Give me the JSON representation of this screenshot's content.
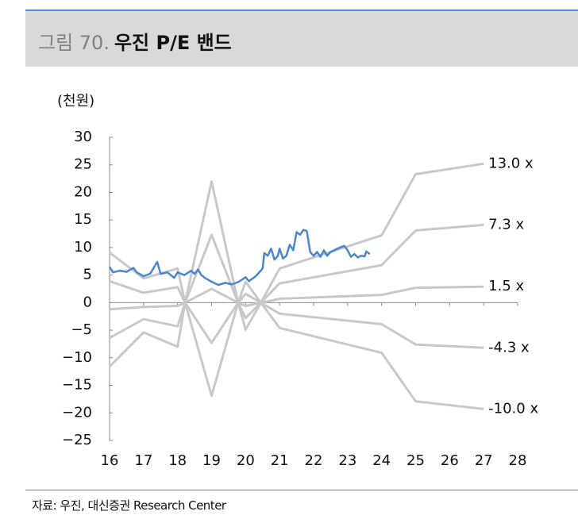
{
  "header": {
    "label": "그림 70.",
    "title": "우진 P/E 밴드"
  },
  "source": "자료: 우진, 대신증권 Research Center",
  "chart_data": {
    "type": "line",
    "y_label": "(천원)",
    "xlim": [
      16,
      28
    ],
    "xticks": [
      16,
      17,
      18,
      19,
      20,
      21,
      22,
      23,
      24,
      25,
      26,
      27,
      28
    ],
    "ylim": [
      -25,
      30
    ],
    "yticks": [
      30,
      25,
      20,
      15,
      10,
      5,
      0,
      {
        "value": -5,
        "label": "−5"
      },
      {
        "value": -10,
        "label": "−10"
      },
      {
        "value": -15,
        "label": "−15"
      },
      {
        "value": -20,
        "label": "−20"
      },
      {
        "value": -25,
        "label": "−25"
      }
    ],
    "series": [
      {
        "name": "13.0 x",
        "color": "#c8c8c8",
        "x": [
          16,
          17,
          18,
          18.22,
          19,
          19.78,
          20,
          20.45,
          21,
          24,
          25,
          27
        ],
        "values": [
          9.1,
          4.4,
          6.2,
          0,
          22,
          0,
          -4.9,
          0,
          6.2,
          12.2,
          23.3,
          25.2
        ]
      },
      {
        "name": "7.3 x",
        "color": "#c8c8c8",
        "x": [
          16,
          17,
          18,
          18.22,
          19,
          19.78,
          20,
          20.45,
          21,
          24,
          25,
          27
        ],
        "values": [
          3.9,
          1.8,
          2.8,
          0,
          12.3,
          0,
          -2.8,
          0,
          3.5,
          6.8,
          13.1,
          14.1
        ]
      },
      {
        "name": "1.5 x",
        "color": "#c8c8c8",
        "x": [
          16,
          17,
          18,
          18.22,
          19,
          19.78,
          20,
          20.45,
          21,
          24,
          25,
          27
        ],
        "values": [
          -1.2,
          -0.8,
          -0.6,
          0,
          2.5,
          0,
          -0.6,
          0,
          0.7,
          1.4,
          2.7,
          2.9
        ]
      },
      {
        "name": "-4.3 x",
        "color": "#c8c8c8",
        "x": [
          16,
          17,
          18,
          18.22,
          19,
          19.78,
          20,
          20.45,
          21,
          24,
          25,
          27
        ],
        "values": [
          -6.4,
          -3.0,
          -4.3,
          0,
          -7.3,
          0,
          1.6,
          0,
          -2.0,
          -3.9,
          -7.6,
          -8.2
        ]
      },
      {
        "name": "-10.0 x",
        "color": "#c8c8c8",
        "x": [
          16,
          17,
          18,
          18.22,
          19,
          19.78,
          20,
          20.45,
          21,
          24,
          25,
          27
        ],
        "values": [
          -11.6,
          -5.4,
          -8.0,
          0,
          -16.9,
          0,
          3.8,
          0,
          -4.6,
          -9.1,
          -17.9,
          -19.3
        ]
      },
      {
        "color": "#4a86c8",
        "x": [
          16.0,
          16.1,
          16.3,
          16.5,
          16.7,
          16.8,
          17.0,
          17.2,
          17.4,
          17.5,
          17.7,
          17.9,
          18.0,
          18.2,
          18.4,
          18.5,
          18.6,
          18.7,
          18.8,
          19.0,
          19.2,
          19.4,
          19.6,
          19.8,
          20.0,
          20.1,
          20.3,
          20.5,
          20.55,
          20.65,
          20.75,
          20.85,
          20.95,
          21.0,
          21.1,
          21.2,
          21.3,
          21.4,
          21.5,
          21.6,
          21.7,
          21.8,
          21.9,
          22.0,
          22.1,
          22.2,
          22.3,
          22.4,
          22.5,
          22.7,
          22.9,
          23.0,
          23.1,
          23.2,
          23.3,
          23.4,
          23.5,
          23.55,
          23.65
        ],
        "values": [
          6.5,
          5.5,
          5.8,
          5.6,
          6.3,
          5.5,
          4.8,
          5.3,
          7.4,
          5.2,
          5.5,
          4.5,
          5.5,
          5.0,
          5.8,
          5.2,
          6.0,
          5.0,
          4.5,
          3.8,
          3.2,
          3.6,
          3.3,
          3.8,
          4.6,
          3.9,
          4.8,
          6.2,
          9.0,
          8.5,
          9.8,
          7.8,
          8.5,
          9.8,
          8.0,
          8.5,
          10.5,
          9.5,
          12.8,
          12.3,
          13.2,
          13.0,
          9.2,
          8.5,
          9.2,
          8.3,
          9.5,
          8.5,
          9.2,
          9.8,
          10.3,
          9.5,
          8.3,
          8.8,
          8.2,
          8.5,
          8.4,
          9.3,
          8.8
        ]
      }
    ]
  }
}
